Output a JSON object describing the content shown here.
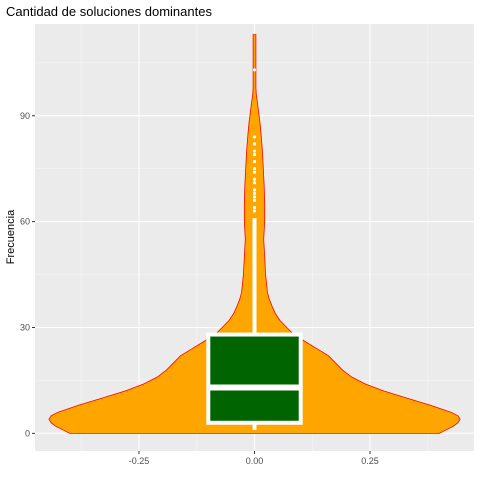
{
  "chart_data": {
    "type": "violin",
    "title": "Cantidad de soluciones dominantes",
    "ylabel": "Frecuencia",
    "xlabel": "",
    "xlim": [
      -0.475,
      0.475
    ],
    "ylim": [
      -5,
      116
    ],
    "x_ticks": [
      -0.25,
      0.0,
      0.25
    ],
    "x_tick_labels": [
      "-0.25",
      "0.00",
      "0.25"
    ],
    "y_ticks": [
      0,
      30,
      60,
      90
    ],
    "y_tick_labels": [
      "0",
      "30",
      "60",
      "90"
    ],
    "grid": true,
    "violin": {
      "x_center": 0.0,
      "fill": "#FFA500",
      "outline": "#FF0000",
      "density_profile": [
        [
          0,
          0.4
        ],
        [
          1,
          0.415
        ],
        [
          2,
          0.43
        ],
        [
          3,
          0.44
        ],
        [
          4,
          0.445
        ],
        [
          5,
          0.44
        ],
        [
          6,
          0.425
        ],
        [
          8,
          0.38
        ],
        [
          10,
          0.33
        ],
        [
          12,
          0.28
        ],
        [
          14,
          0.24
        ],
        [
          16,
          0.21
        ],
        [
          18,
          0.19
        ],
        [
          20,
          0.175
        ],
        [
          22,
          0.16
        ],
        [
          24,
          0.135
        ],
        [
          26,
          0.11
        ],
        [
          28,
          0.085
        ],
        [
          30,
          0.07
        ],
        [
          32,
          0.055
        ],
        [
          34,
          0.045
        ],
        [
          36,
          0.038
        ],
        [
          38,
          0.032
        ],
        [
          40,
          0.028
        ],
        [
          45,
          0.024
        ],
        [
          50,
          0.022
        ],
        [
          55,
          0.02
        ],
        [
          60,
          0.022
        ],
        [
          65,
          0.022
        ],
        [
          70,
          0.021
        ],
        [
          75,
          0.019
        ],
        [
          80,
          0.017
        ],
        [
          85,
          0.014
        ],
        [
          88,
          0.012
        ],
        [
          90,
          0.01
        ],
        [
          92,
          0.008
        ],
        [
          94,
          0.006
        ],
        [
          96,
          0.004
        ],
        [
          98,
          0.003
        ],
        [
          100,
          0.003
        ],
        [
          102,
          0.003
        ],
        [
          105,
          0.003
        ],
        [
          108,
          0.003
        ],
        [
          111,
          0.003
        ],
        [
          113,
          0.003
        ]
      ]
    },
    "boxplot": {
      "box_fill": "#006400",
      "box_outline": "#FFFFFF",
      "whisker_color": "#FFFFFF",
      "box_half_width": 0.1,
      "min": 1,
      "q1": 3,
      "median": 13,
      "q3": 28,
      "whisker_high": 61,
      "outliers": [
        63,
        64,
        66,
        67,
        68,
        69,
        71,
        72,
        74,
        75,
        77,
        79,
        80,
        82,
        84,
        103
      ]
    }
  }
}
